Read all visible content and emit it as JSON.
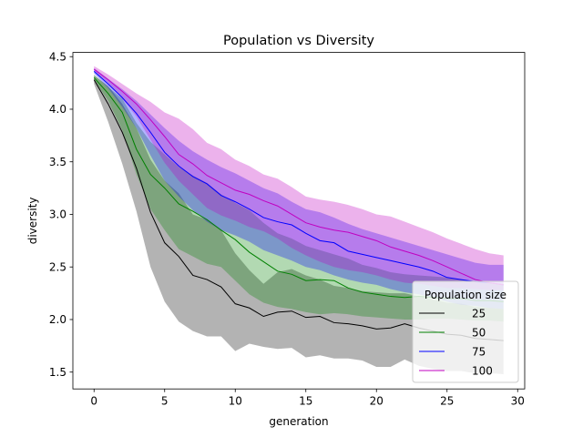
{
  "chart_data": {
    "type": "line",
    "title": "Population vs Diversity",
    "xlabel": "generation",
    "ylabel": "diversity",
    "xlim": [
      -1.5,
      30.5
    ],
    "ylim": [
      1.34,
      4.54
    ],
    "xticks": [
      0,
      5,
      10,
      15,
      20,
      25,
      30
    ],
    "yticks": [
      1.5,
      2.0,
      2.5,
      3.0,
      3.5,
      4.0,
      4.5
    ],
    "ytick_labels": [
      "1.5",
      "2.0",
      "2.5",
      "3.0",
      "3.5",
      "4.0",
      "4.5"
    ],
    "grid": false,
    "legend": {
      "title": "Population size",
      "placement": "lower-right"
    },
    "x": [
      0,
      1,
      2,
      3,
      4,
      5,
      6,
      7,
      8,
      9,
      10,
      11,
      12,
      13,
      14,
      15,
      16,
      17,
      18,
      19,
      20,
      21,
      22,
      23,
      24,
      25,
      26,
      27,
      28,
      29
    ],
    "series": [
      {
        "name": "25",
        "color": "#000000",
        "fill": "#808080",
        "fill_opacity": 0.6,
        "mean": [
          4.28,
          4.05,
          3.78,
          3.44,
          3.02,
          2.73,
          2.6,
          2.42,
          2.38,
          2.31,
          2.15,
          2.11,
          2.03,
          2.07,
          2.08,
          2.02,
          2.03,
          1.97,
          1.96,
          1.94,
          1.91,
          1.92,
          1.96,
          1.92,
          1.89,
          1.86,
          1.85,
          1.82,
          1.81,
          1.8
        ],
        "lower": [
          4.24,
          3.88,
          3.48,
          3.03,
          2.5,
          2.17,
          1.98,
          1.89,
          1.84,
          1.84,
          1.7,
          1.77,
          1.74,
          1.72,
          1.73,
          1.64,
          1.66,
          1.63,
          1.63,
          1.61,
          1.55,
          1.55,
          1.62,
          1.56,
          1.53,
          1.51,
          1.51,
          1.49,
          1.49,
          1.48
        ],
        "upper": [
          4.32,
          4.22,
          4.05,
          3.82,
          3.52,
          3.32,
          3.2,
          3.0,
          2.95,
          2.85,
          2.63,
          2.47,
          2.34,
          2.45,
          2.48,
          2.42,
          2.38,
          2.32,
          2.3,
          2.27,
          2.26,
          2.25,
          2.25,
          2.22,
          2.19,
          2.16,
          2.15,
          2.12,
          2.11,
          2.1
        ]
      },
      {
        "name": "50",
        "color": "#008000",
        "fill": "#008000",
        "fill_opacity": 0.3,
        "mean": [
          4.3,
          4.15,
          3.97,
          3.62,
          3.38,
          3.25,
          3.1,
          3.03,
          2.95,
          2.85,
          2.76,
          2.64,
          2.55,
          2.46,
          2.43,
          2.37,
          2.38,
          2.37,
          2.3,
          2.26,
          2.24,
          2.22,
          2.21,
          2.22,
          2.21,
          2.2,
          2.2,
          2.18,
          2.18,
          2.17
        ],
        "lower": [
          4.28,
          4.08,
          3.8,
          3.38,
          3.05,
          2.85,
          2.67,
          2.6,
          2.53,
          2.5,
          2.37,
          2.24,
          2.16,
          2.12,
          2.1,
          2.07,
          2.05,
          2.06,
          2.05,
          2.03,
          2.02,
          2.01,
          2.0,
          2.0,
          2.01,
          2.01,
          2.0,
          1.99,
          1.99,
          1.98
        ],
        "upper": [
          4.33,
          4.21,
          4.1,
          3.87,
          3.69,
          3.57,
          3.45,
          3.37,
          3.3,
          3.19,
          3.11,
          3.04,
          2.92,
          2.82,
          2.77,
          2.7,
          2.66,
          2.62,
          2.58,
          2.52,
          2.49,
          2.45,
          2.43,
          2.42,
          2.41,
          2.4,
          2.38,
          2.36,
          2.35,
          2.34
        ]
      },
      {
        "name": "75",
        "color": "#0000ff",
        "fill": "#0000ff",
        "fill_opacity": 0.3,
        "mean": [
          4.36,
          4.24,
          4.11,
          3.96,
          3.78,
          3.59,
          3.46,
          3.36,
          3.29,
          3.18,
          3.12,
          3.05,
          2.97,
          2.93,
          2.9,
          2.82,
          2.75,
          2.73,
          2.65,
          2.62,
          2.59,
          2.56,
          2.53,
          2.5,
          2.46,
          2.4,
          2.38,
          2.36,
          2.35,
          2.33
        ],
        "lower": [
          4.34,
          4.2,
          4.02,
          3.82,
          3.56,
          3.32,
          3.17,
          3.04,
          2.93,
          2.85,
          2.8,
          2.74,
          2.66,
          2.61,
          2.56,
          2.5,
          2.47,
          2.42,
          2.38,
          2.35,
          2.33,
          2.29,
          2.26,
          2.24,
          2.21,
          2.17,
          2.14,
          2.13,
          2.11,
          2.1
        ],
        "upper": [
          4.39,
          4.29,
          4.19,
          4.08,
          3.95,
          3.82,
          3.7,
          3.6,
          3.52,
          3.45,
          3.39,
          3.32,
          3.25,
          3.2,
          3.12,
          3.05,
          3.02,
          2.97,
          2.91,
          2.86,
          2.82,
          2.78,
          2.74,
          2.7,
          2.66,
          2.62,
          2.58,
          2.54,
          2.52,
          2.52
        ]
      },
      {
        "name": "100",
        "color": "#c000c0",
        "fill": "#c000c0",
        "fill_opacity": 0.3,
        "mean": [
          4.38,
          4.28,
          4.17,
          4.05,
          3.9,
          3.74,
          3.57,
          3.48,
          3.37,
          3.3,
          3.23,
          3.19,
          3.13,
          3.08,
          3.0,
          2.92,
          2.88,
          2.85,
          2.83,
          2.79,
          2.75,
          2.69,
          2.65,
          2.61,
          2.56,
          2.5,
          2.44,
          2.38,
          2.35,
          2.33
        ],
        "lower": [
          4.36,
          4.25,
          4.1,
          3.93,
          3.71,
          3.49,
          3.32,
          3.19,
          3.06,
          2.99,
          2.94,
          2.88,
          2.84,
          2.77,
          2.68,
          2.61,
          2.55,
          2.5,
          2.47,
          2.45,
          2.42,
          2.38,
          2.35,
          2.34,
          2.32,
          2.3,
          2.3,
          2.29,
          2.28,
          2.28
        ],
        "upper": [
          4.41,
          4.33,
          4.24,
          4.15,
          4.07,
          3.97,
          3.91,
          3.81,
          3.68,
          3.62,
          3.52,
          3.46,
          3.38,
          3.34,
          3.26,
          3.17,
          3.14,
          3.12,
          3.09,
          3.05,
          3.0,
          2.98,
          2.93,
          2.88,
          2.83,
          2.77,
          2.72,
          2.67,
          2.63,
          2.61
        ]
      }
    ]
  }
}
